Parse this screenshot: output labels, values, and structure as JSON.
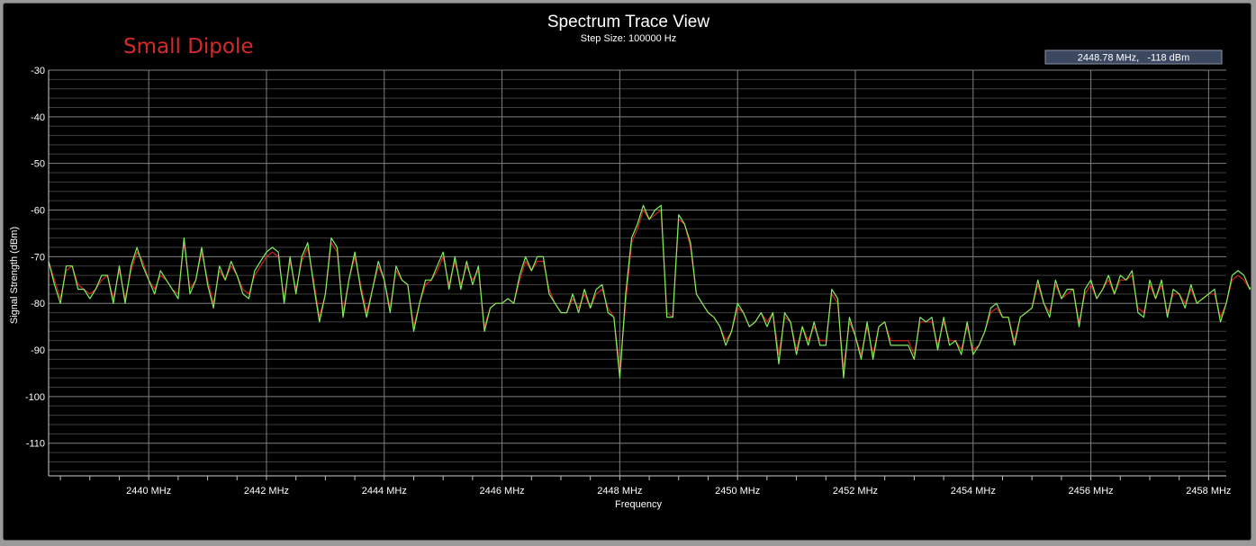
{
  "chart_data": {
    "type": "line",
    "title": "Spectrum Trace View",
    "subtitle": "Step Size: 100000 Hz",
    "annotation": "Small Dipole",
    "readout": "2448.78 MHz,   -118 dBm",
    "xlabel": "Frequency",
    "ylabel": "Signal Strength (dBm)",
    "xlim": [
      2438.3,
      2458.3
    ],
    "ylim": [
      -117,
      -30
    ],
    "y_ticks": [
      -30,
      -40,
      -50,
      -60,
      -70,
      -80,
      -90,
      -100,
      -110
    ],
    "y_tick_labels": [
      "-30",
      "-40",
      "-50",
      "-60",
      "-70",
      "-80",
      "-90",
      "-100",
      "-110"
    ],
    "x_ticks": [
      2440,
      2442,
      2444,
      2446,
      2448,
      2450,
      2452,
      2454,
      2456,
      2458
    ],
    "x_tick_labels": [
      "2440 MHz",
      "2442 MHz",
      "2444 MHz",
      "2446 MHz",
      "2448 MHz",
      "2450 MHz",
      "2452 MHz",
      "2454 MHz",
      "2456 MHz",
      "2458 MHz"
    ],
    "grid": true,
    "colors": {
      "green": "#7df05a",
      "red": "#d42020",
      "grid": "#6a6a6a",
      "readout_bg": "#3c4860"
    },
    "series": [
      {
        "x_start": 2438.3,
        "x_step": 0.1,
        "values": [
          -71,
          -76,
          -80,
          -72,
          -72,
          -77,
          -77,
          -79,
          -77,
          -74,
          -74,
          -80,
          -72,
          -80,
          -72,
          -68,
          -72,
          -75,
          -78,
          -73,
          -75,
          -77,
          -79,
          -66,
          -78,
          -75,
          -68,
          -76,
          -81,
          -72,
          -75,
          -71,
          -74,
          -78,
          -79,
          -73,
          -71,
          -69,
          -68,
          -69,
          -80,
          -70,
          -78,
          -70,
          -67,
          -76,
          -84,
          -78,
          -66,
          -68,
          -83,
          -75,
          -69,
          -77,
          -83,
          -77,
          -71,
          -75,
          -82,
          -72,
          -75,
          -76,
          -86,
          -80,
          -75,
          -75,
          -72,
          -69,
          -77,
          -70,
          -77,
          -71,
          -76,
          -72,
          -86,
          -81,
          -80,
          -80,
          -79,
          -80,
          -74,
          -70,
          -73,
          -70,
          -70,
          -78,
          -80,
          -82,
          -82,
          -78,
          -82,
          -77,
          -81,
          -77,
          -76,
          -82,
          -83,
          -96,
          -78,
          -66,
          -63,
          -59,
          -62,
          -60,
          -59,
          -83,
          -83,
          -61,
          -63,
          -67,
          -78,
          -80,
          -82,
          -83,
          -85,
          -89,
          -86,
          -80,
          -82,
          -85,
          -84,
          -82,
          -85,
          -82,
          -93,
          -82,
          -84,
          -91,
          -85,
          -89,
          -84,
          -89,
          -89,
          -77,
          -79,
          -96,
          -83,
          -87,
          -92,
          -84,
          -92,
          -85,
          -84,
          -89,
          -89,
          -89,
          -89,
          -92,
          -83,
          -84,
          -83,
          -90,
          -83,
          -89,
          -88,
          -91,
          -84,
          -91,
          -89,
          -86,
          -81,
          -80,
          -83,
          -83,
          -89,
          -83,
          -82,
          -81,
          -75,
          -80,
          -83,
          -75,
          -79,
          -77,
          -77,
          -85,
          -77,
          -75,
          -79,
          -77,
          -74,
          -78,
          -74,
          -75,
          -73,
          -82,
          -83,
          -75,
          -79,
          -75,
          -83,
          -77,
          -78,
          -81,
          -76,
          -80,
          -79,
          -78,
          -77,
          -84,
          -80,
          -74,
          -73,
          -74,
          -77,
          -74,
          -82,
          -82,
          -79,
          -84,
          -81
        ]
      },
      {
        "x_start": 2438.3,
        "x_step": 0.1,
        "values": [
          -71,
          -75,
          -79,
          -73,
          -72,
          -76,
          -77,
          -78,
          -77,
          -75,
          -74,
          -79,
          -73,
          -79,
          -73,
          -69,
          -71,
          -75,
          -77,
          -74,
          -75,
          -77,
          -78,
          -67,
          -77,
          -75,
          -69,
          -75,
          -80,
          -73,
          -75,
          -72,
          -74,
          -77,
          -78,
          -74,
          -72,
          -70,
          -69,
          -70,
          -79,
          -71,
          -77,
          -71,
          -68,
          -75,
          -83,
          -78,
          -67,
          -69,
          -82,
          -75,
          -70,
          -76,
          -82,
          -77,
          -72,
          -75,
          -81,
          -73,
          -75,
          -76,
          -85,
          -80,
          -76,
          -75,
          -73,
          -70,
          -76,
          -71,
          -76,
          -72,
          -75,
          -73,
          -85,
          -81,
          -80,
          -80,
          -79,
          -80,
          -75,
          -71,
          -73,
          -71,
          -71,
          -77,
          -80,
          -82,
          -82,
          -79,
          -81,
          -78,
          -81,
          -78,
          -77,
          -81,
          -83,
          -94,
          -80,
          -67,
          -64,
          -60,
          -62,
          -61,
          -60,
          -82,
          -83,
          -62,
          -63,
          -68,
          -78,
          -80,
          -82,
          -83,
          -85,
          -88,
          -86,
          -81,
          -82,
          -85,
          -84,
          -82,
          -84,
          -82,
          -91,
          -83,
          -84,
          -90,
          -85,
          -88,
          -85,
          -88,
          -88,
          -78,
          -80,
          -94,
          -84,
          -87,
          -91,
          -85,
          -91,
          -85,
          -84,
          -88,
          -88,
          -88,
          -88,
          -91,
          -84,
          -84,
          -84,
          -89,
          -84,
          -88,
          -88,
          -90,
          -85,
          -90,
          -89,
          -86,
          -82,
          -81,
          -83,
          -83,
          -88,
          -83,
          -82,
          -81,
          -76,
          -80,
          -82,
          -76,
          -79,
          -78,
          -77,
          -84,
          -78,
          -76,
          -79,
          -77,
          -75,
          -78,
          -75,
          -75,
          -74,
          -81,
          -82,
          -76,
          -79,
          -76,
          -82,
          -78,
          -78,
          -80,
          -77,
          -80,
          -79,
          -78,
          -78,
          -83,
          -80,
          -75,
          -74,
          -75,
          -77,
          -75,
          -81,
          -81,
          -79,
          -83,
          -81
        ]
      }
    ]
  }
}
